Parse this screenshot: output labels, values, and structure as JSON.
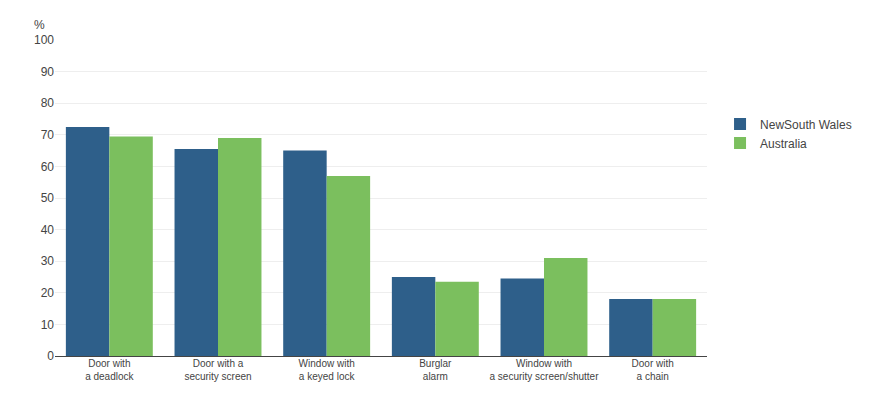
{
  "chart_data": {
    "type": "bar",
    "categories": [
      "Door with\na deadlock",
      "Door with a\nsecurity screen",
      "Window with\na keyed lock",
      "Burglar\nalarm",
      "Window with\na security screen/shutter",
      "Door with\na chain"
    ],
    "series": [
      {
        "name": "NewSouth Wales",
        "color": "#2E5F8A",
        "values": [
          72.5,
          65.5,
          65.0,
          25.0,
          24.5,
          18.0
        ]
      },
      {
        "name": "Australia",
        "color": "#7BBF5E",
        "values": [
          69.5,
          69.0,
          57.0,
          23.5,
          31.0,
          18.0
        ]
      }
    ],
    "ylabel": "%",
    "ylim": [
      0,
      100
    ],
    "yticks": [
      0,
      10,
      20,
      30,
      40,
      50,
      60,
      70,
      80,
      90,
      100
    ],
    "grid": true,
    "legend": "right"
  }
}
